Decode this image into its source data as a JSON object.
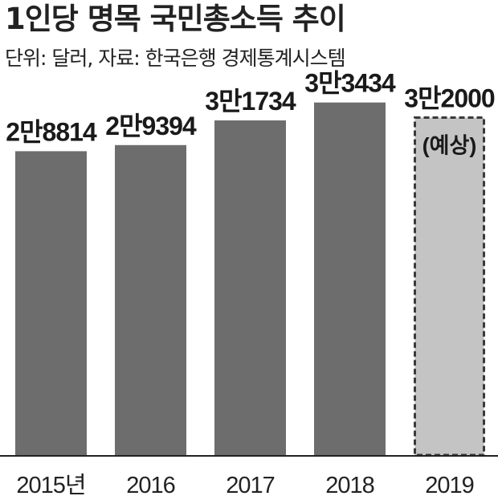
{
  "header": {
    "title": "1인당 명목 국민총소득 추이",
    "subtitle": "단위: 달러, 자료: 한국은행 경제통계시스템"
  },
  "colors": {
    "bar": "#6d6d6d",
    "forecast_bar": "#c4c4c4",
    "forecast_border": "#3a3a3a",
    "axis": "#222222"
  },
  "chart_data": {
    "type": "bar",
    "title": "1인당 명목 국민총소득 추이",
    "subtitle": "단위: 달러, 자료: 한국은행 경제통계시스템",
    "categories": [
      "2015년",
      "2016",
      "2017",
      "2018",
      "2019"
    ],
    "values": [
      28814,
      29394,
      31734,
      33434,
      32000
    ],
    "value_labels": [
      "2만8814",
      "2만9394",
      "3만1734",
      "3만3434",
      "3만2000"
    ],
    "forecast_index": 4,
    "forecast_note": "(예상)",
    "ylim": [
      0,
      43000
    ],
    "grid": false,
    "legend": "none"
  }
}
